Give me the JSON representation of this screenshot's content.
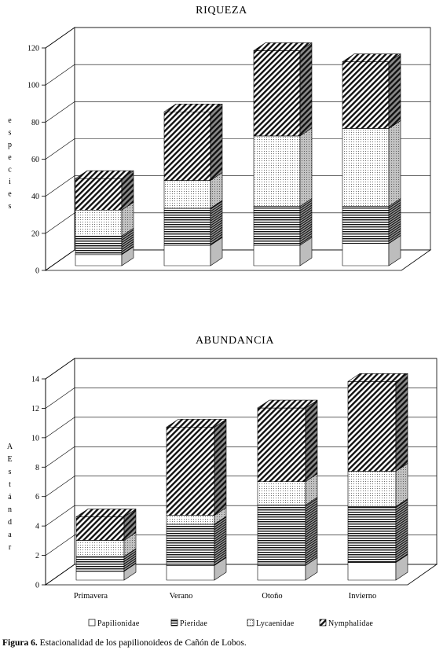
{
  "figure": {
    "caption_label": "Figura 6.",
    "caption_text": "Estacionalidad de los papilionoideos de Cañón de Lobos."
  },
  "chart_data": [
    {
      "type": "bar",
      "stacked": true,
      "three_d": true,
      "title": "RIQUEZA",
      "ylabel": "especies",
      "categories": [
        "Primavera",
        "Verano",
        "Otoño",
        "Invierno"
      ],
      "series": [
        {
          "name": "Papilionidae",
          "values": [
            6,
            11,
            11,
            12
          ]
        },
        {
          "name": "Pieridae",
          "values": [
            10,
            20,
            21,
            20
          ]
        },
        {
          "name": "Lycaenidae",
          "values": [
            14,
            15,
            38,
            42
          ]
        },
        {
          "name": "Nymphalidae",
          "values": [
            17,
            37,
            46,
            36
          ]
        }
      ],
      "ylim": [
        0,
        120
      ],
      "yticks": [
        0,
        20,
        40,
        60,
        80,
        100,
        120
      ],
      "grid": true
    },
    {
      "type": "bar",
      "stacked": true,
      "three_d": true,
      "title": "ABUNDANCIA",
      "ylabel": "AEstándar",
      "categories": [
        "Primavera",
        "Verano",
        "Otoño",
        "Invierno"
      ],
      "series": [
        {
          "name": "Papilionidae",
          "values": [
            0.6,
            1.0,
            1.0,
            1.2
          ]
        },
        {
          "name": "Pieridae",
          "values": [
            1.0,
            2.8,
            4.1,
            3.8
          ]
        },
        {
          "name": "Lycaenidae",
          "values": [
            1.1,
            0.6,
            1.6,
            2.4
          ]
        },
        {
          "name": "Nymphalidae",
          "values": [
            1.6,
            6.0,
            5.0,
            6.1
          ]
        }
      ],
      "ylim": [
        0,
        14
      ],
      "yticks": [
        0,
        2,
        4,
        6,
        8,
        10,
        12,
        14
      ],
      "grid": true,
      "legend": "bottom"
    }
  ]
}
